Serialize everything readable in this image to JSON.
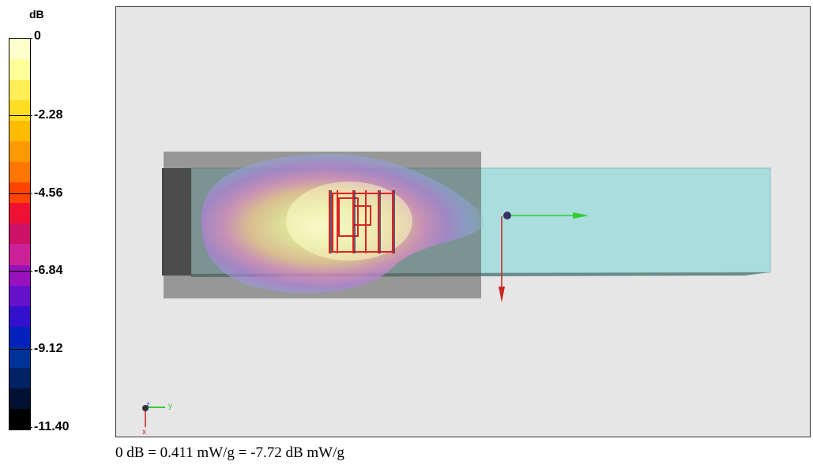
{
  "colorbar": {
    "unit": "dB",
    "ticks": [
      "0",
      "-2.28",
      "-4.56",
      "-6.84",
      "-9.12",
      "-11.40"
    ],
    "colors": [
      "#ffffcc",
      "#ffff99",
      "#ffee55",
      "#ffdd22",
      "#ffbb00",
      "#ff9900",
      "#ff7700",
      "#ff4400",
      "#ee1133",
      "#cc1166",
      "#cc2299",
      "#9911bb",
      "#6611cc",
      "#3311cc",
      "#0022bb",
      "#003399",
      "#002266",
      "#001133",
      "#000000"
    ]
  },
  "viewport": {
    "background": "#e6e6e6",
    "phantom_color": "#aadddd",
    "axis_triad": {
      "y_label": "y",
      "z_label": "z",
      "x_label": "x"
    }
  },
  "footer": {
    "text": "0 dB = 0.411 mW/g = -7.72 dB mW/g"
  }
}
